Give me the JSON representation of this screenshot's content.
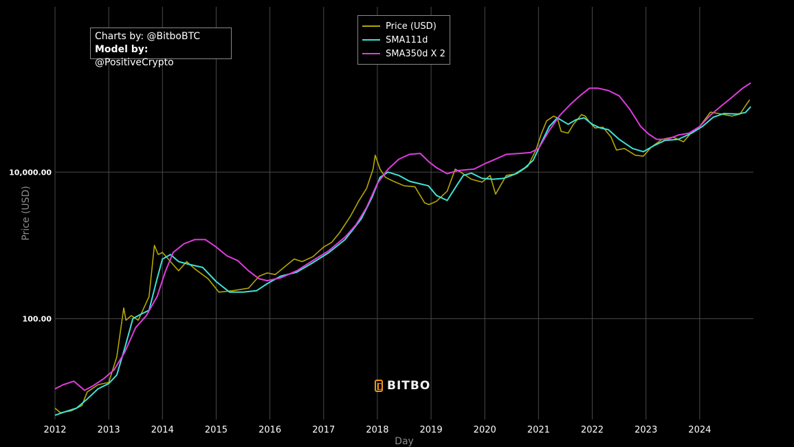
{
  "chart_data": {
    "type": "line",
    "xlabel": "Day",
    "ylabel": "Price (USD)",
    "y_scale": "log",
    "ylim": [
      4.2,
      1800000
    ],
    "xlim": [
      2012.0,
      2024.95
    ],
    "x_ticks": [
      "2012",
      "2013",
      "2014",
      "2015",
      "2016",
      "2017",
      "2018",
      "2019",
      "2020",
      "2021",
      "2022",
      "2023",
      "2024"
    ],
    "y_ticks": [
      {
        "value": 100,
        "label": "100.00"
      },
      {
        "value": 10000,
        "label": "10,000.00"
      }
    ],
    "grid": true,
    "legend_position": "top-center",
    "series": [
      {
        "name": "Price (USD)",
        "color": "#b5a900",
        "x": [
          2012.0,
          2012.1,
          2012.3,
          2012.5,
          2012.6,
          2012.8,
          2013.0,
          2013.15,
          2013.28,
          2013.32,
          2013.42,
          2013.55,
          2013.75,
          2013.85,
          2013.92,
          2014.0,
          2014.15,
          2014.3,
          2014.45,
          2014.6,
          2014.85,
          2015.05,
          2015.3,
          2015.6,
          2015.8,
          2015.95,
          2016.1,
          2016.45,
          2016.6,
          2016.8,
          2017.0,
          2017.15,
          2017.3,
          2017.5,
          2017.65,
          2017.8,
          2017.92,
          2017.96,
          2018.05,
          2018.15,
          2018.3,
          2018.5,
          2018.7,
          2018.88,
          2018.96,
          2019.1,
          2019.3,
          2019.45,
          2019.55,
          2019.75,
          2019.95,
          2020.1,
          2020.2,
          2020.4,
          2020.6,
          2020.8,
          2020.95,
          2021.05,
          2021.15,
          2021.28,
          2021.35,
          2021.42,
          2021.55,
          2021.65,
          2021.8,
          2021.87,
          2021.95,
          2022.05,
          2022.2,
          2022.35,
          2022.45,
          2022.6,
          2022.8,
          2022.95,
          2023.1,
          2023.3,
          2023.5,
          2023.7,
          2023.85,
          2024.0,
          2024.2,
          2024.4,
          2024.6,
          2024.75,
          2024.85,
          2024.93
        ],
        "values": [
          6,
          5.2,
          5.5,
          6.5,
          10,
          12.5,
          13.5,
          30,
          140,
          95,
          110,
          95,
          200,
          1000,
          750,
          800,
          600,
          450,
          600,
          480,
          350,
          230,
          240,
          260,
          380,
          420,
          400,
          650,
          600,
          700,
          950,
          1100,
          1500,
          2500,
          4000,
          6000,
          11000,
          17000,
          11000,
          8500,
          7500,
          6500,
          6300,
          3800,
          3600,
          4000,
          5500,
          11000,
          10000,
          8000,
          7300,
          9000,
          5000,
          9000,
          9500,
          12000,
          20000,
          33000,
          50000,
          58000,
          55000,
          36000,
          34000,
          45000,
          61000,
          58000,
          48000,
          40000,
          41000,
          30000,
          20000,
          21000,
          17000,
          16500,
          22000,
          28000,
          30000,
          26000,
          35000,
          42000,
          66000,
          62000,
          58000,
          62000,
          80000,
          97000
        ]
      },
      {
        "name": "SMA111d",
        "color": "#3ee3d8",
        "x": [
          2012.0,
          2012.2,
          2012.4,
          2012.6,
          2012.8,
          2013.0,
          2013.15,
          2013.3,
          2013.45,
          2013.6,
          2013.75,
          2013.9,
          2014.0,
          2014.15,
          2014.3,
          2014.5,
          2014.75,
          2015.0,
          2015.25,
          2015.5,
          2015.75,
          2015.95,
          2016.2,
          2016.5,
          2016.8,
          2017.1,
          2017.4,
          2017.7,
          2017.9,
          2018.05,
          2018.2,
          2018.4,
          2018.6,
          2018.8,
          2018.95,
          2019.1,
          2019.3,
          2019.5,
          2019.6,
          2019.75,
          2019.95,
          2020.15,
          2020.35,
          2020.55,
          2020.75,
          2020.9,
          2021.05,
          2021.2,
          2021.35,
          2021.55,
          2021.7,
          2021.85,
          2022.0,
          2022.15,
          2022.3,
          2022.5,
          2022.75,
          2022.95,
          2023.15,
          2023.35,
          2023.6,
          2023.85,
          2024.05,
          2024.25,
          2024.45,
          2024.7,
          2024.85,
          2024.95
        ],
        "values": [
          4.8,
          5.4,
          6,
          8,
          11,
          13,
          17,
          40,
          100,
          115,
          130,
          350,
          650,
          750,
          600,
          550,
          500,
          320,
          230,
          230,
          240,
          300,
          380,
          430,
          580,
          800,
          1200,
          2300,
          4500,
          8500,
          10000,
          9000,
          7500,
          6900,
          6500,
          4800,
          4100,
          7000,
          9000,
          9700,
          8200,
          8000,
          8200,
          9300,
          11500,
          14500,
          25000,
          42000,
          55000,
          45000,
          52000,
          55000,
          45000,
          40000,
          38000,
          28000,
          21000,
          19000,
          23000,
          27000,
          28000,
          34000,
          42000,
          56000,
          63000,
          62000,
          65000,
          78000
        ]
      },
      {
        "name": "SMA350d X 2",
        "color": "#e03ce0",
        "x": [
          2012.0,
          2012.15,
          2012.35,
          2012.55,
          2012.7,
          2012.9,
          2013.1,
          2013.3,
          2013.5,
          2013.7,
          2013.9,
          2014.05,
          2014.2,
          2014.4,
          2014.6,
          2014.8,
          2015.0,
          2015.2,
          2015.4,
          2015.6,
          2015.8,
          2015.95,
          2016.2,
          2016.5,
          2016.8,
          2017.1,
          2017.4,
          2017.6,
          2017.8,
          2018.0,
          2018.2,
          2018.4,
          2018.6,
          2018.8,
          2018.95,
          2019.1,
          2019.3,
          2019.5,
          2019.8,
          2020.0,
          2020.15,
          2020.4,
          2020.65,
          2020.85,
          2021.0,
          2021.2,
          2021.4,
          2021.6,
          2021.8,
          2021.95,
          2022.1,
          2022.3,
          2022.5,
          2022.7,
          2022.9,
          2023.05,
          2023.2,
          2023.4,
          2023.6,
          2023.8,
          2024.0,
          2024.2,
          2024.4,
          2024.6,
          2024.8,
          2024.95
        ],
        "values": [
          11,
          12.5,
          14,
          10.5,
          12,
          15,
          20,
          35,
          75,
          110,
          200,
          430,
          800,
          1050,
          1200,
          1200,
          950,
          720,
          620,
          450,
          350,
          330,
          360,
          450,
          620,
          850,
          1300,
          1900,
          3300,
          7000,
          11000,
          15000,
          17500,
          18000,
          14000,
          11500,
          9500,
          10500,
          11000,
          13000,
          14500,
          17500,
          18000,
          18500,
          21000,
          37000,
          60000,
          85000,
          115000,
          140000,
          140000,
          130000,
          110000,
          72000,
          42000,
          33000,
          28000,
          28000,
          32000,
          34000,
          42000,
          60000,
          80000,
          105000,
          140000,
          165000
        ]
      }
    ]
  },
  "credits": {
    "charts_prefix": "Charts by:",
    "charts_handle": "@BitboBTC",
    "model_prefix": "Model by:",
    "model_handle": "@PositiveCrypto"
  },
  "watermark": {
    "text": "BITBO",
    "icon": "bitbo-logo-icon",
    "color": "#f7931a"
  },
  "colors": {
    "background": "#000000",
    "grid": "#4a4a4a",
    "axis_text": "#ffffff",
    "axis_label": "#8c8c8c"
  }
}
